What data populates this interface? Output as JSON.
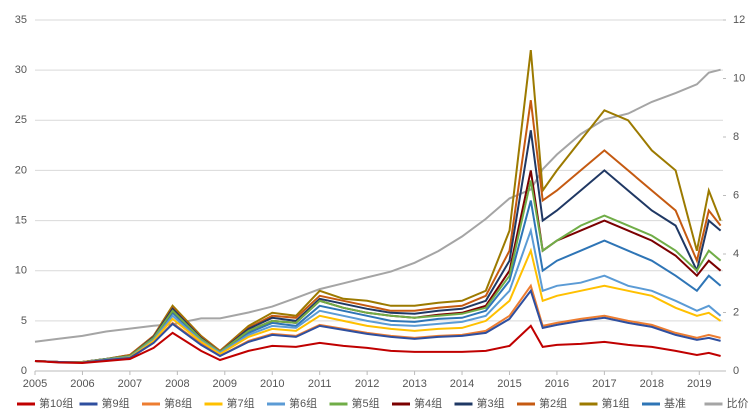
{
  "chart_data": {
    "type": "line",
    "legend": "bottom",
    "grid": true,
    "x": [
      2005,
      2005.5,
      2006,
      2006.5,
      2007,
      2007.5,
      2007.9,
      2008.5,
      2008.9,
      2009.5,
      2010,
      2010.5,
      2011,
      2011.5,
      2012,
      2012.5,
      2013,
      2013.5,
      2014,
      2014.5,
      2015,
      2015.45,
      2015.7,
      2016,
      2016.5,
      2017,
      2017.5,
      2018,
      2018.5,
      2018.95,
      2019.2,
      2019.45
    ],
    "xlim": [
      2005,
      2019.5
    ],
    "xticks": [
      2005,
      2006,
      2007,
      2008,
      2009,
      2010,
      2011,
      2012,
      2013,
      2014,
      2015,
      2016,
      2017,
      2018,
      2019
    ],
    "ylim": [
      0,
      35
    ],
    "yticks": [
      0,
      5,
      10,
      15,
      20,
      25,
      30,
      35
    ],
    "y2lim": [
      0,
      12
    ],
    "y2ticks": [
      0,
      2,
      4,
      6,
      8,
      10,
      12
    ],
    "series": [
      {
        "name": "第10组",
        "color": "#c00000",
        "values": [
          1,
          0.85,
          0.8,
          1.0,
          1.2,
          2.3,
          3.8,
          2.0,
          1.1,
          2.0,
          2.5,
          2.4,
          2.8,
          2.5,
          2.3,
          2.0,
          1.9,
          1.9,
          1.9,
          2.0,
          2.5,
          4.5,
          2.4,
          2.6,
          2.7,
          2.9,
          2.6,
          2.4,
          2.0,
          1.6,
          1.8,
          1.5
        ]
      },
      {
        "name": "第9组",
        "color": "#2f4f9f",
        "values": [
          1,
          0.9,
          0.85,
          1.1,
          1.3,
          2.8,
          4.7,
          2.6,
          1.5,
          2.9,
          3.6,
          3.4,
          4.5,
          4.1,
          3.7,
          3.4,
          3.2,
          3.4,
          3.5,
          3.8,
          5.2,
          8,
          4.3,
          4.6,
          5.0,
          5.3,
          4.8,
          4.4,
          3.6,
          3.1,
          3.3,
          3.0
        ]
      },
      {
        "name": "第8组",
        "color": "#ed7d31",
        "values": [
          1,
          0.9,
          0.85,
          1.1,
          1.3,
          2.8,
          4.8,
          2.7,
          1.5,
          3.0,
          3.7,
          3.5,
          4.6,
          4.2,
          3.8,
          3.5,
          3.3,
          3.5,
          3.6,
          4.0,
          5.5,
          8.5,
          4.5,
          4.8,
          5.2,
          5.5,
          5.0,
          4.6,
          3.8,
          3.3,
          3.6,
          3.3
        ]
      },
      {
        "name": "第7组",
        "color": "#ffc000",
        "values": [
          1,
          0.9,
          0.9,
          1.1,
          1.35,
          3.0,
          5.2,
          2.9,
          1.7,
          3.4,
          4.2,
          4.0,
          5.5,
          5.0,
          4.5,
          4.2,
          4.0,
          4.2,
          4.3,
          5.0,
          7,
          12,
          7,
          7.5,
          8,
          8.5,
          8,
          7.5,
          6.3,
          5.5,
          5.8,
          5.0
        ]
      },
      {
        "name": "第6组",
        "color": "#5b9bd5",
        "values": [
          1,
          0.9,
          0.9,
          1.15,
          1.4,
          3.1,
          5.5,
          3.0,
          1.8,
          3.6,
          4.5,
          4.3,
          6.0,
          5.5,
          5.0,
          4.6,
          4.5,
          4.7,
          4.9,
          5.5,
          8,
          14,
          8,
          8.5,
          8.8,
          9.5,
          8.5,
          8,
          7,
          6,
          6.5,
          5.5
        ]
      },
      {
        "name": "第5组",
        "color": "#70ad47",
        "values": [
          1,
          0.9,
          0.9,
          1.2,
          1.5,
          3.3,
          6.0,
          3.2,
          1.9,
          4.0,
          5.0,
          4.8,
          7.0,
          6.3,
          5.8,
          5.5,
          5.3,
          5.5,
          5.7,
          6.3,
          9.5,
          19,
          12,
          13,
          14.5,
          15.5,
          14.5,
          13.5,
          12,
          10,
          12,
          11
        ]
      },
      {
        "name": "第4组",
        "color": "#7b0000",
        "values": [
          1,
          0.9,
          0.9,
          1.2,
          1.5,
          3.3,
          6.0,
          3.2,
          1.9,
          4.0,
          5.0,
          4.8,
          7.0,
          6.3,
          5.8,
          5.5,
          5.3,
          5.6,
          5.8,
          6.5,
          10,
          20,
          12,
          13,
          14,
          15,
          14,
          13,
          11.5,
          9.5,
          11,
          10
        ]
      },
      {
        "name": "第3组",
        "color": "#1f3864",
        "values": [
          1,
          0.9,
          0.9,
          1.2,
          1.5,
          3.4,
          6.2,
          3.3,
          1.9,
          4.2,
          5.3,
          5.0,
          7.2,
          6.7,
          6.2,
          5.8,
          5.7,
          6.0,
          6.2,
          7.0,
          11,
          24,
          15,
          16,
          18,
          20,
          18,
          16,
          14.5,
          10,
          15,
          14
        ]
      },
      {
        "name": "第2组",
        "color": "#c55a11",
        "values": [
          1,
          0.9,
          0.9,
          1.2,
          1.6,
          3.5,
          6.3,
          3.4,
          2.0,
          4.3,
          5.5,
          5.3,
          7.5,
          7.0,
          6.5,
          6.0,
          6.0,
          6.3,
          6.5,
          7.5,
          12,
          27,
          17,
          18,
          20,
          22,
          20,
          18,
          16,
          11,
          16,
          14.5
        ]
      },
      {
        "name": "第1组",
        "color": "#9c7a00",
        "values": [
          1,
          0.9,
          0.9,
          1.2,
          1.6,
          3.5,
          6.5,
          3.5,
          2.0,
          4.5,
          5.8,
          5.5,
          8.0,
          7.2,
          7.0,
          6.5,
          6.5,
          6.8,
          7.0,
          8.0,
          14,
          32,
          18,
          20,
          23,
          26,
          25,
          22,
          20,
          12,
          18,
          15
        ]
      },
      {
        "name": "基准",
        "color": "#2e75b6",
        "values": [
          1,
          0.9,
          0.9,
          1.15,
          1.45,
          3.2,
          5.8,
          3.1,
          1.8,
          3.8,
          4.8,
          4.5,
          6.5,
          6.0,
          5.5,
          5.0,
          4.9,
          5.2,
          5.3,
          6.0,
          9,
          17,
          10,
          11,
          12,
          13,
          12,
          11,
          9.5,
          8,
          9.5,
          8.5
        ]
      },
      {
        "name": "比价",
        "color": "#a5a5a5",
        "axis": "y2",
        "values": [
          1,
          1.1,
          1.2,
          1.35,
          1.45,
          1.55,
          1.6,
          1.8,
          1.8,
          2.0,
          2.2,
          2.5,
          2.8,
          3.0,
          3.2,
          3.4,
          3.7,
          4.1,
          4.6,
          5.2,
          5.9,
          6.2,
          6.9,
          7.4,
          8.1,
          8.6,
          8.8,
          9.2,
          9.5,
          9.8,
          10.2,
          10.3
        ]
      }
    ]
  }
}
